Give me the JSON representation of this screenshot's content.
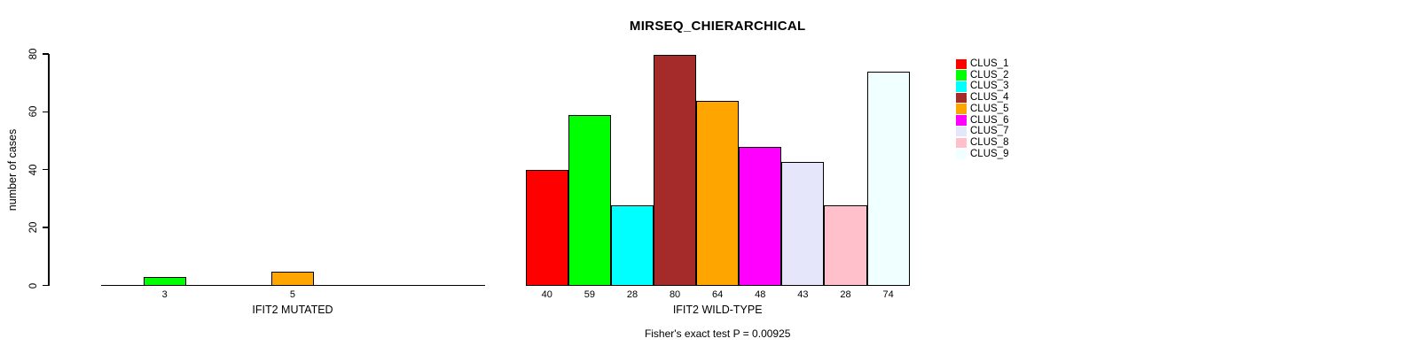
{
  "chart_data": {
    "type": "bar",
    "title": "MIRSEQ_CHIERARCHICAL",
    "ylabel": "number of cases",
    "ylim": [
      0,
      80
    ],
    "yticks": [
      0,
      20,
      40,
      60,
      80
    ],
    "grid": false,
    "legend_position": "right",
    "annotation": "Fisher's exact test P = 0.00925",
    "clusters": [
      "CLUS_1",
      "CLUS_2",
      "CLUS_3",
      "CLUS_4",
      "CLUS_5",
      "CLUS_6",
      "CLUS_7",
      "CLUS_8",
      "CLUS_9"
    ],
    "colors": [
      "#FF0000",
      "#00FF00",
      "#00FFFF",
      "#A52A2A",
      "#FFA500",
      "#FF00FF",
      "#E6E6FA",
      "#FFC0CB",
      "#F0FFFF"
    ],
    "panels": [
      {
        "xlabel": "IFIT2 MUTATED",
        "values": [
          0,
          3,
          0,
          0,
          5,
          0,
          0,
          0,
          0
        ]
      },
      {
        "xlabel": "IFIT2 WILD-TYPE",
        "values": [
          40,
          59,
          28,
          80,
          64,
          48,
          43,
          28,
          74
        ]
      }
    ]
  }
}
